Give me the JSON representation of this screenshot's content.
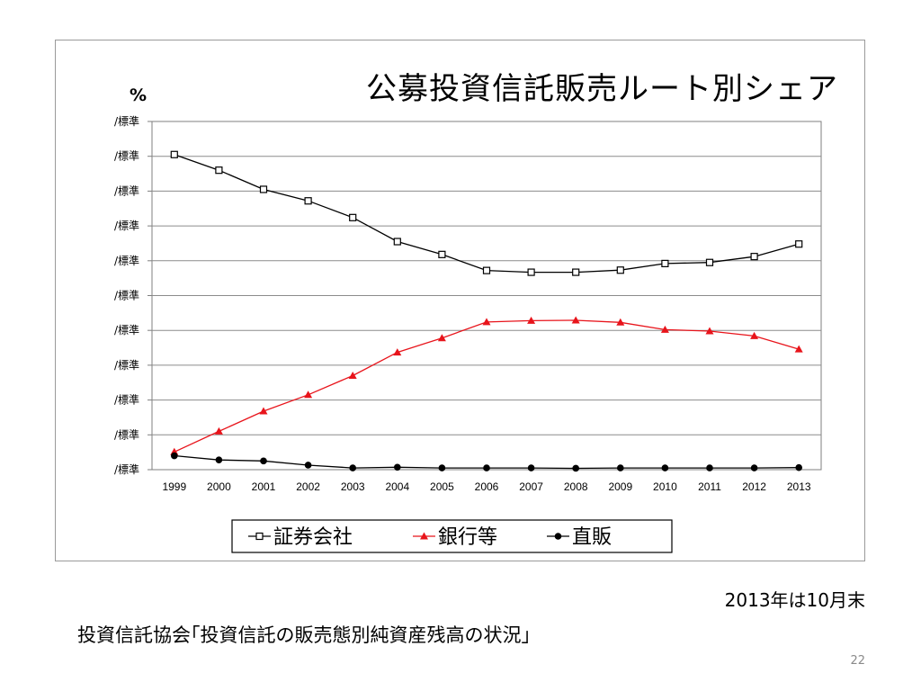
{
  "chart_data": {
    "type": "line",
    "title": "公募投資信託販売ルート別シェア",
    "ylabel": "%",
    "y_tick_labels": [
      "/標準",
      "/標準",
      "/標準",
      "/標準",
      "/標準",
      "/標準",
      "/標準",
      "/標準",
      "/標準",
      "/標準",
      "/標準"
    ],
    "categories": [
      "1999",
      "2000",
      "2001",
      "2002",
      "2003",
      "2004",
      "2005",
      "2006",
      "2007",
      "2008",
      "2009",
      "2010",
      "2011",
      "2012",
      "2013"
    ],
    "ylim": [
      0,
      100
    ],
    "grid": true,
    "legend_position": "bottom",
    "series": [
      {
        "name": "証券会社",
        "color": "#000000",
        "marker": "open-square",
        "values": [
          90.5,
          86,
          80.5,
          77.2,
          72.4,
          65.5,
          61.8,
          57.2,
          56.7,
          56.7,
          57.3,
          59.2,
          59.5,
          61.2,
          64.8
        ]
      },
      {
        "name": "銀行等",
        "color": "#e8141b",
        "marker": "filled-triangle",
        "values": [
          5.1,
          11,
          16.8,
          21.5,
          27,
          33.7,
          37.8,
          42.4,
          42.8,
          42.9,
          42.3,
          40.2,
          39.8,
          38.4,
          34.6
        ]
      },
      {
        "name": "直販",
        "color": "#000000",
        "marker": "filled-circle",
        "values": [
          4,
          2.8,
          2.5,
          1.3,
          0.5,
          0.7,
          0.5,
          0.5,
          0.5,
          0.4,
          0.5,
          0.5,
          0.5,
          0.5,
          0.6
        ]
      }
    ]
  },
  "page": {
    "note": "2013年は10月末",
    "source": "投資信託協会｢投資信託の販売態別純資産残高の状況｣",
    "page_number": "22"
  }
}
